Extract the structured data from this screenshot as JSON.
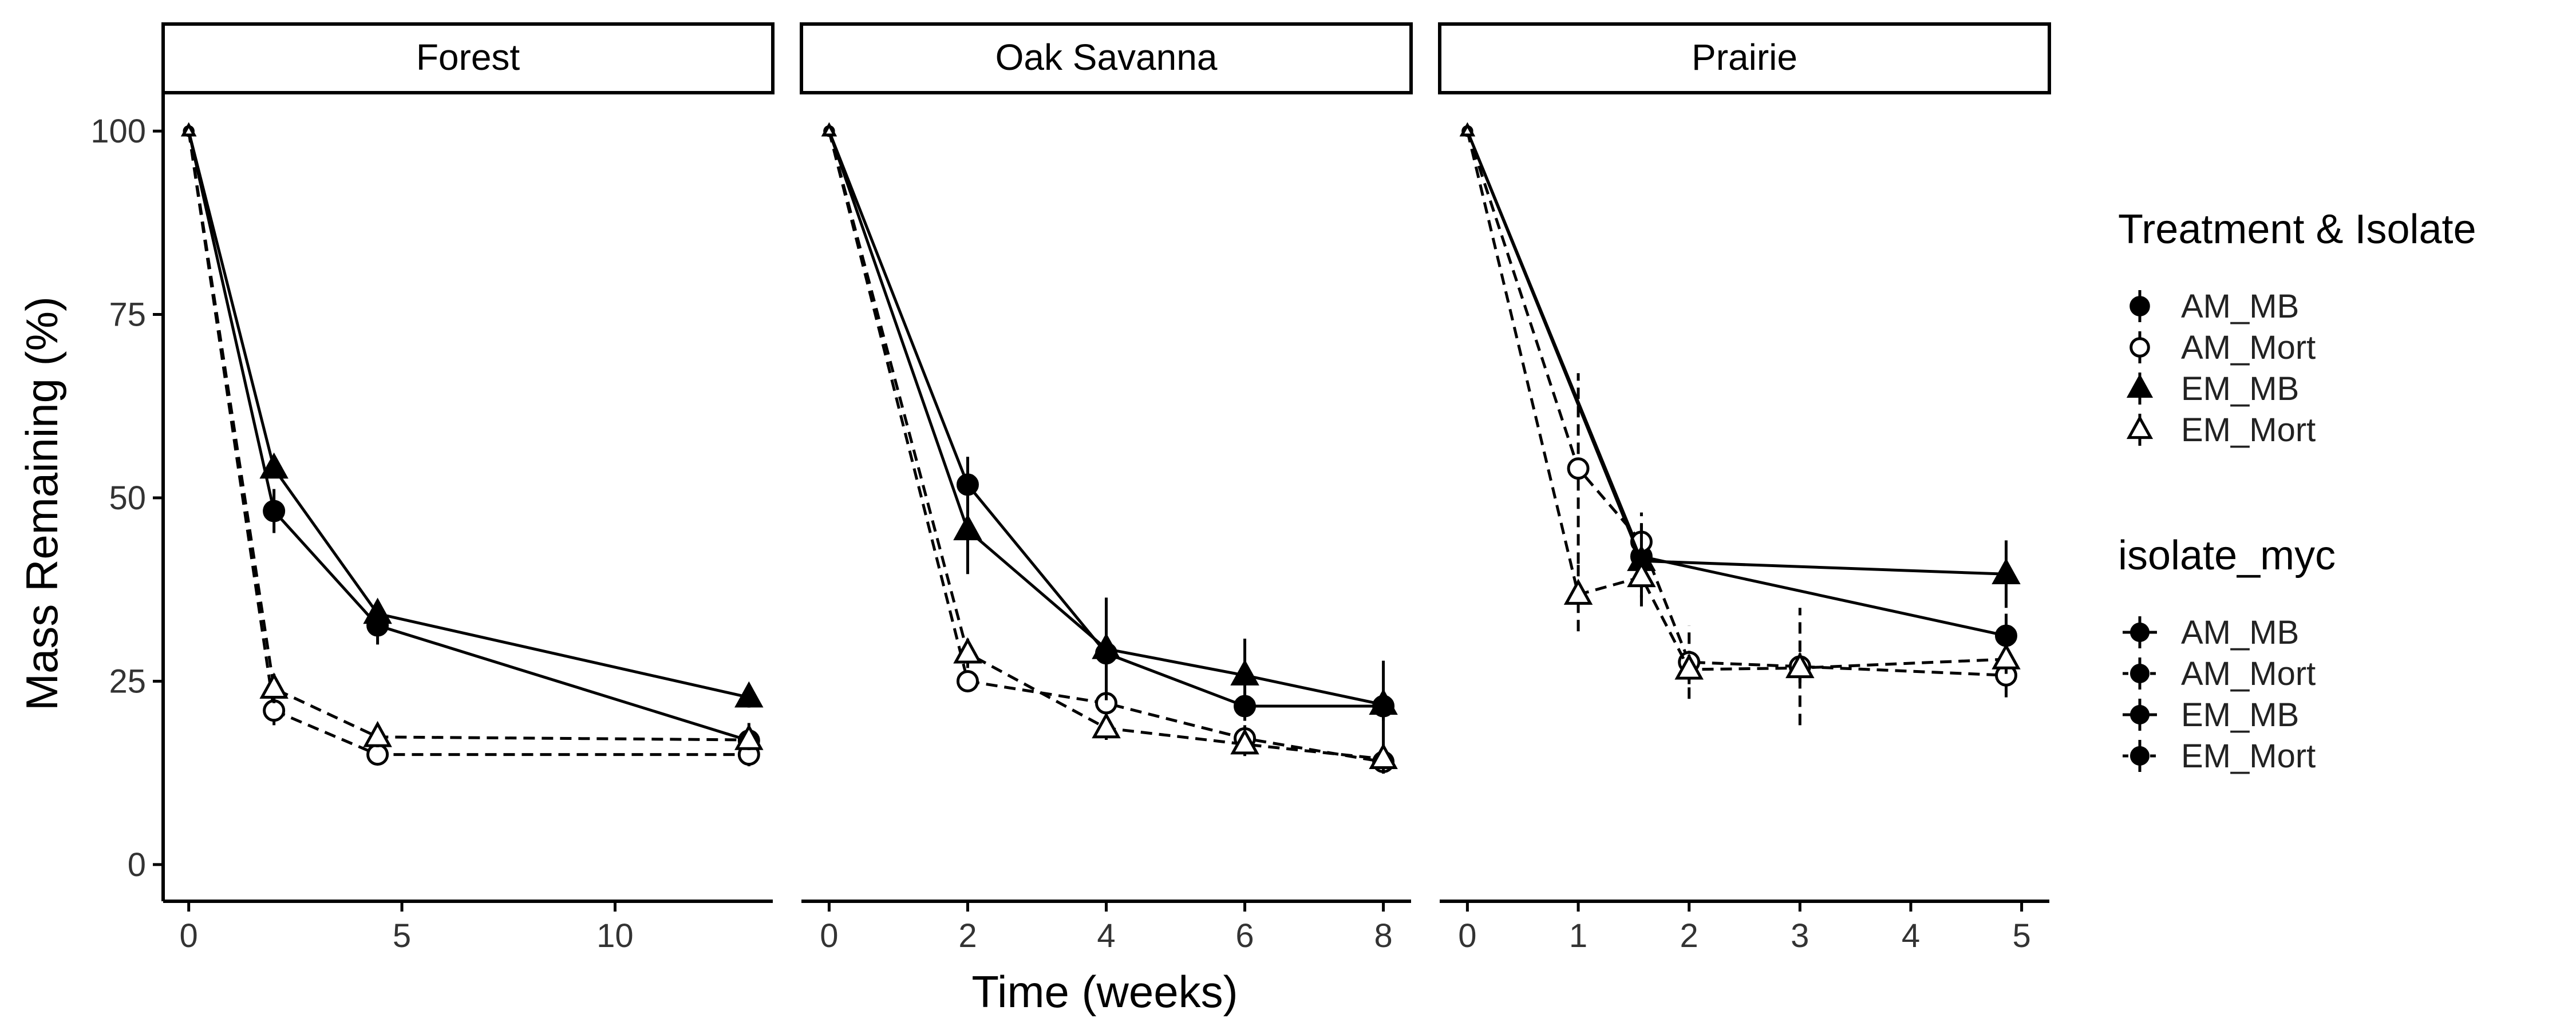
{
  "chart_data": {
    "type": "line",
    "facets": [
      {
        "title": "Forest",
        "xlim": [
          -0.6,
          13.7
        ],
        "x_ticks": [
          0,
          5,
          10
        ],
        "series": [
          {
            "name": "AM_MB",
            "x": [
              0,
              2,
              4.43,
              13.14
            ],
            "y": [
              100,
              48.2,
              32.6,
              16.9
            ],
            "err": [
              0,
              3.0,
              2.6,
              2.4
            ]
          },
          {
            "name": "AM_Mort",
            "x": [
              0,
              2,
              4.43,
              13.14
            ],
            "y": [
              100,
              21.0,
              15.0,
              15.0
            ],
            "err": [
              0,
              2.0,
              1.4,
              1.6
            ]
          },
          {
            "name": "EM_MB",
            "x": [
              0,
              2,
              4.43,
              13.14
            ],
            "y": [
              100,
              54.0,
              34.2,
              22.8
            ],
            "err": [
              0,
              1.2,
              1.2,
              1.4
            ]
          },
          {
            "name": "EM_Mort",
            "x": [
              0,
              2,
              4.43,
              13.14
            ],
            "y": [
              100,
              24.0,
              17.4,
              17.0
            ],
            "err": [
              0,
              2.0,
              1.4,
              1.4
            ]
          }
        ]
      },
      {
        "title": "Oak Savanna",
        "xlim": [
          -0.4,
          8.4
        ],
        "x_ticks": [
          0,
          2,
          4,
          6,
          8
        ],
        "series": [
          {
            "name": "AM_MB",
            "x": [
              0,
              2,
              4,
              6,
              8
            ],
            "y": [
              100,
              51.8,
              28.8,
              21.6,
              21.6
            ],
            "err": [
              0,
              3.8,
              3.0,
              2.0,
              2.0
            ]
          },
          {
            "name": "AM_Mort",
            "x": [
              0,
              2,
              4,
              6,
              8
            ],
            "y": [
              100,
              25.0,
              22.0,
              17.2,
              14.0
            ],
            "err": [
              0,
              1.4,
              2.0,
              1.8,
              1.0
            ]
          },
          {
            "name": "EM_MB",
            "x": [
              0,
              2,
              4,
              6,
              8
            ],
            "y": [
              100,
              45.6,
              29.4,
              25.8,
              21.8
            ],
            "err": [
              0,
              6.0,
              7.0,
              5.0,
              6.0
            ]
          },
          {
            "name": "EM_Mort",
            "x": [
              0,
              2,
              4,
              6,
              8
            ],
            "y": [
              100,
              28.8,
              18.6,
              16.4,
              14.4
            ],
            "err": [
              0,
              2.0,
              1.6,
              1.6,
              2.0
            ]
          }
        ]
      },
      {
        "title": "Prairie",
        "xlim": [
          -0.25,
          5.25
        ],
        "x_ticks": [
          0,
          1,
          2,
          3,
          4,
          5
        ],
        "series": [
          {
            "name": "AM_MB",
            "x": [
              0,
              1.57,
              4.86
            ],
            "y": [
              100,
              42.0,
              31.2
            ],
            "err": [
              0,
              3.0,
              3.0
            ]
          },
          {
            "name": "AM_Mort",
            "x": [
              0,
              1,
              1.57,
              2,
              3,
              4.86
            ],
            "y": [
              100,
              54.0,
              44.0,
              27.6,
              27.0,
              25.8
            ],
            "err": [
              0,
              13.0,
              4.0,
              5.0,
              8.0,
              3.0
            ]
          },
          {
            "name": "EM_MB",
            "x": [
              0,
              1.57,
              4.86
            ],
            "y": [
              100,
              41.4,
              39.6
            ],
            "err": [
              0,
              5.0,
              4.6
            ]
          },
          {
            "name": "EM_Mort",
            "x": [
              0,
              1,
              1.57,
              2,
              3,
              4.86
            ],
            "y": [
              100,
              36.8,
              39.2,
              26.6,
              26.8,
              28.0
            ],
            "err": [
              0,
              5.0,
              4.0,
              2.0,
              2.0,
              2.0
            ]
          }
        ]
      }
    ],
    "xlabel": "Time (weeks)",
    "ylabel": "Mass Remaining (%)",
    "ylim": [
      -5,
      105
    ],
    "y_ticks": [
      0,
      25,
      50,
      75,
      100
    ],
    "grid": false,
    "legend_position": "right",
    "legends": [
      {
        "title": "Treatment & Isolate",
        "entries": [
          {
            "label": "AM_MB",
            "shape": "circle",
            "fill": "solid"
          },
          {
            "label": "AM_Mort",
            "shape": "circle",
            "fill": "open"
          },
          {
            "label": "EM_MB",
            "shape": "triangle",
            "fill": "solid"
          },
          {
            "label": "EM_Mort",
            "shape": "triangle",
            "fill": "open"
          }
        ]
      },
      {
        "title": "isolate_myc",
        "entries": [
          {
            "label": "AM_MB",
            "linetype": "solid"
          },
          {
            "label": "AM_Mort",
            "linetype": "dashed"
          },
          {
            "label": "EM_MB",
            "linetype": "solid"
          },
          {
            "label": "EM_Mort",
            "linetype": "dashed"
          }
        ]
      }
    ],
    "series_styles": {
      "AM_MB": {
        "shape": "circle",
        "fill": "solid",
        "linetype": "solid"
      },
      "AM_Mort": {
        "shape": "circle",
        "fill": "open",
        "linetype": "dashed"
      },
      "EM_MB": {
        "shape": "triangle",
        "fill": "solid",
        "linetype": "solid"
      },
      "EM_Mort": {
        "shape": "triangle",
        "fill": "open",
        "linetype": "dashed"
      }
    },
    "colors": {
      "ink": "#000000",
      "background": "#ffffff"
    }
  }
}
